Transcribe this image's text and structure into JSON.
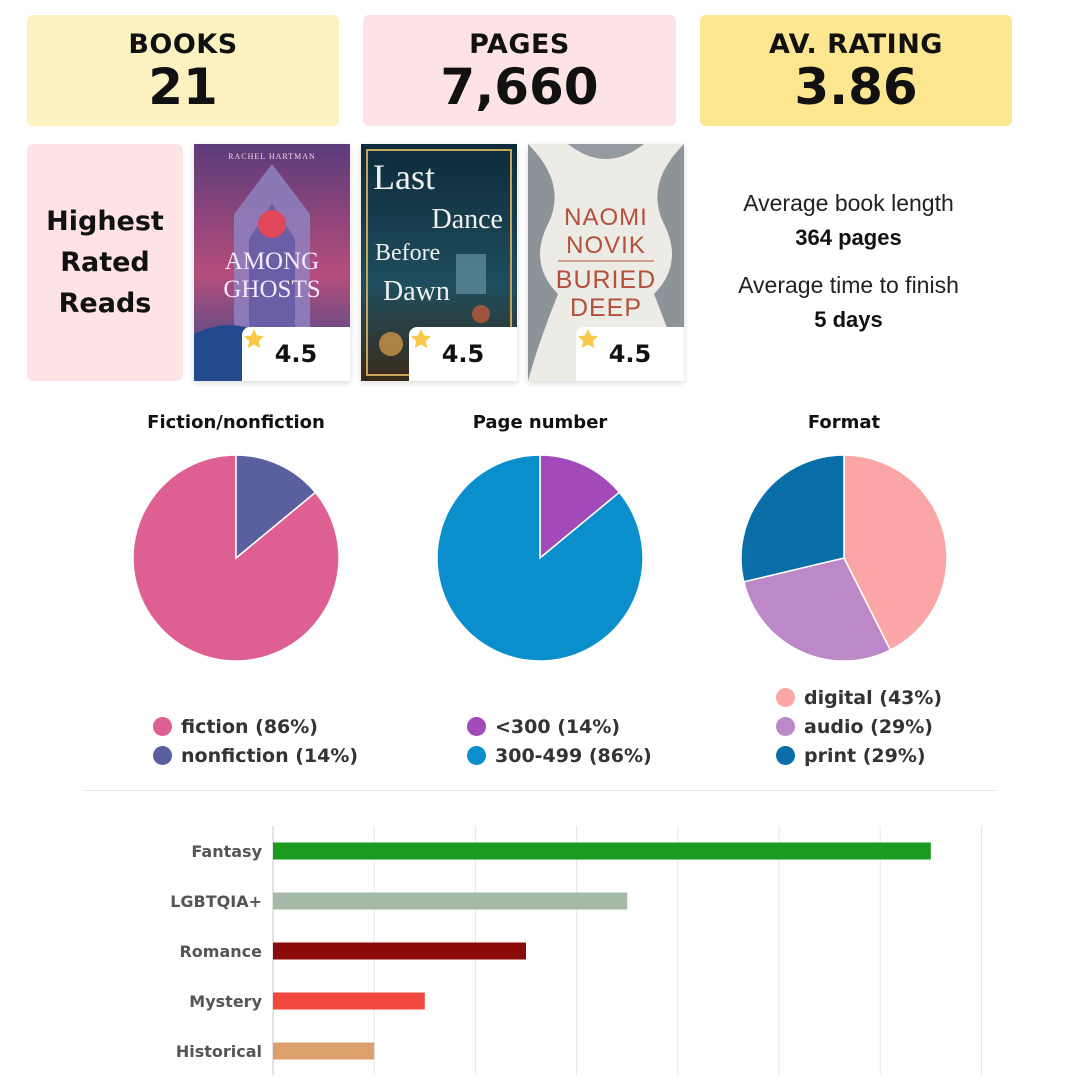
{
  "stats": {
    "books": {
      "label": "BOOKS",
      "value": "21"
    },
    "pages": {
      "label": "PAGES",
      "value": "7,660"
    },
    "rating": {
      "label": "AV. RATING",
      "value": "3.86"
    }
  },
  "highest_rated": {
    "heading": "Highest\nRated\nReads",
    "books": [
      {
        "cover_author": "RACHEL HARTMAN",
        "cover_title_1": "AMONG",
        "cover_title_2": "GHOSTS",
        "rating": "4.5"
      },
      {
        "cover_title_1": "Last",
        "cover_title_2": "Dance",
        "cover_title_3": "Before",
        "cover_title_4": "Dawn",
        "rating": "4.5"
      },
      {
        "cover_author_1": "NAOMI",
        "cover_author_2": "NOVIK",
        "cover_title_1": "BURIED",
        "cover_title_2": "DEEP",
        "rating": "4.5"
      }
    ],
    "star_icon": "star-icon",
    "star_color": "#f7c948"
  },
  "averages": {
    "length_label": "Average book length",
    "length_value": "364 pages",
    "time_label": "Average time to finish",
    "time_value": "5 days"
  },
  "chart_data": [
    {
      "type": "pie",
      "title": "Fiction/nonfiction",
      "labels": [
        "fiction",
        "nonfiction"
      ],
      "values": [
        86,
        14
      ],
      "legend_text": [
        "fiction (86%)",
        "nonfiction (14%)"
      ],
      "colors": [
        "#de5f92",
        "#5a5f9e"
      ],
      "start": "top",
      "order": [
        "fiction",
        "nonfiction"
      ]
    },
    {
      "type": "pie",
      "title": "Page number",
      "labels": [
        "<300",
        "300-499"
      ],
      "values": [
        14,
        86
      ],
      "legend_text": [
        "<300 (14%)",
        "300-499 (86%)"
      ],
      "colors": [
        "#a24ab8",
        "#0a8fcc"
      ]
    },
    {
      "type": "pie",
      "title": "Format",
      "labels": [
        "digital",
        "audio",
        "print"
      ],
      "values": [
        43,
        29,
        29
      ],
      "legend_text": [
        "digital (43%)",
        "audio (29%)",
        "print (29%)"
      ],
      "colors": [
        "#faa6a6",
        "#bc88c8",
        "#0a6fa8"
      ]
    },
    {
      "type": "bar",
      "orientation": "horizontal",
      "categories": [
        "Fantasy",
        "LGBTQIA+",
        "Romance",
        "Mystery",
        "Historical"
      ],
      "values": [
        13,
        7,
        5,
        3,
        2
      ],
      "colors": [
        "#1a9a1e",
        "#a6b8a6",
        "#8b0b0b",
        "#f0473f",
        "#dba06e"
      ],
      "xlim": [
        0,
        14
      ],
      "grid": true
    }
  ]
}
